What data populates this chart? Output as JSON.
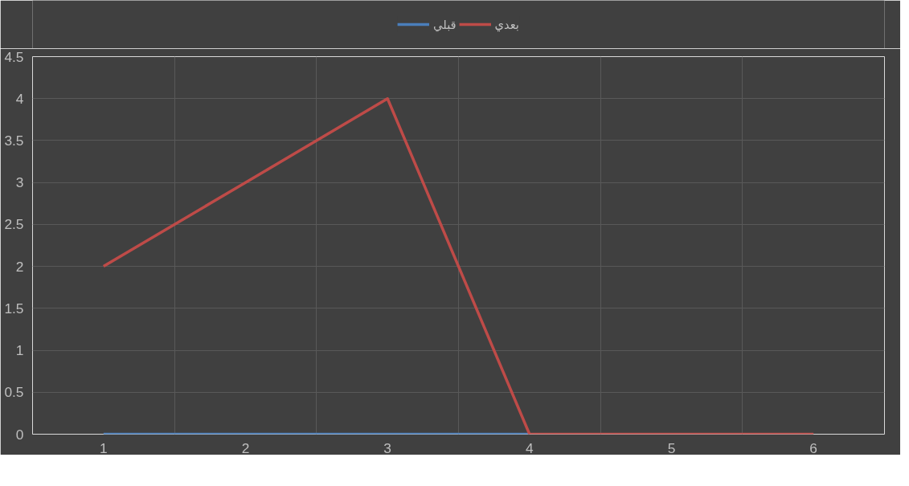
{
  "chart_data": {
    "type": "line",
    "categories": [
      "1",
      "2",
      "3",
      "4",
      "5",
      "6"
    ],
    "series": [
      {
        "name": "قبلي",
        "color": "#4a7ebb",
        "values": [
          0,
          0,
          0,
          0,
          null,
          null
        ]
      },
      {
        "name": "بعدي",
        "color": "#be4b48",
        "values": [
          2,
          3,
          4,
          0,
          0,
          0
        ]
      }
    ],
    "ylim": [
      0,
      4.5
    ],
    "yticks": [
      0,
      0.5,
      1,
      1.5,
      2,
      2.5,
      3,
      3.5,
      4,
      4.5
    ],
    "grid": true,
    "legend": "top",
    "marker": "none",
    "line_style": "solid"
  }
}
